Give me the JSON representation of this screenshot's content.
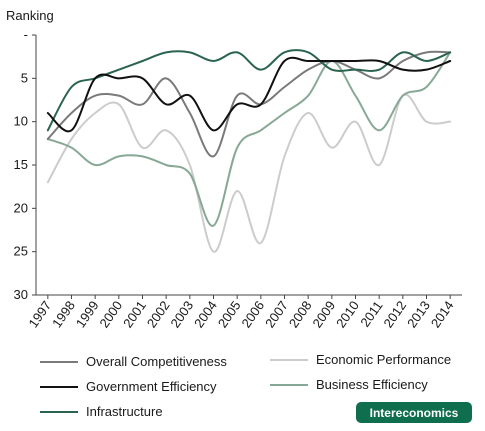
{
  "brand": {
    "label": "Intereconomics",
    "color": "#0e6e4e"
  },
  "chart_data": {
    "type": "line",
    "title": "",
    "xlabel": "",
    "ylabel": "Ranking",
    "y_inverted": true,
    "ylim": [
      0,
      30
    ],
    "yticks": [
      0,
      5,
      10,
      15,
      20,
      25,
      30
    ],
    "ytick_labels": [
      "-",
      "5",
      "10",
      "15",
      "20",
      "25",
      "30"
    ],
    "grid": false,
    "legend_position": "bottom",
    "x": [
      "1997",
      "1998",
      "1999",
      "2000",
      "2001",
      "2002",
      "2003",
      "2004",
      "2005",
      "2006",
      "2007",
      "2008",
      "2009",
      "2010",
      "2011",
      "2012",
      "2013",
      "2014"
    ],
    "series": [
      {
        "name": "Overall Competitiveness",
        "color": "#7a7a7a",
        "values": [
          12,
          9,
          7,
          7,
          8,
          5,
          9,
          14,
          7,
          8,
          6,
          4,
          3,
          4,
          5,
          3,
          2,
          2
        ]
      },
      {
        "name": "Government Efficiency",
        "color": "#111111",
        "values": [
          9,
          11,
          5,
          5,
          5,
          8,
          7,
          11,
          8,
          8,
          3,
          3,
          3,
          3,
          3,
          4,
          4,
          3
        ]
      },
      {
        "name": "Infrastructure",
        "color": "#2a6450",
        "values": [
          11,
          6,
          5,
          4,
          3,
          2,
          2,
          3,
          2,
          4,
          2,
          2,
          4,
          4,
          4,
          2,
          3,
          2
        ]
      },
      {
        "name": "Economic Performance",
        "color": "#cccccc",
        "values": [
          17,
          12,
          9,
          8,
          13,
          11,
          15,
          25,
          18,
          24,
          14,
          9,
          13,
          10,
          15,
          7,
          10,
          10
        ]
      },
      {
        "name": "Business Efficiency",
        "color": "#88a896",
        "values": [
          12,
          13,
          15,
          14,
          14,
          15,
          16,
          22,
          13,
          11,
          9,
          7,
          3,
          7,
          11,
          7,
          6,
          2
        ]
      }
    ]
  }
}
